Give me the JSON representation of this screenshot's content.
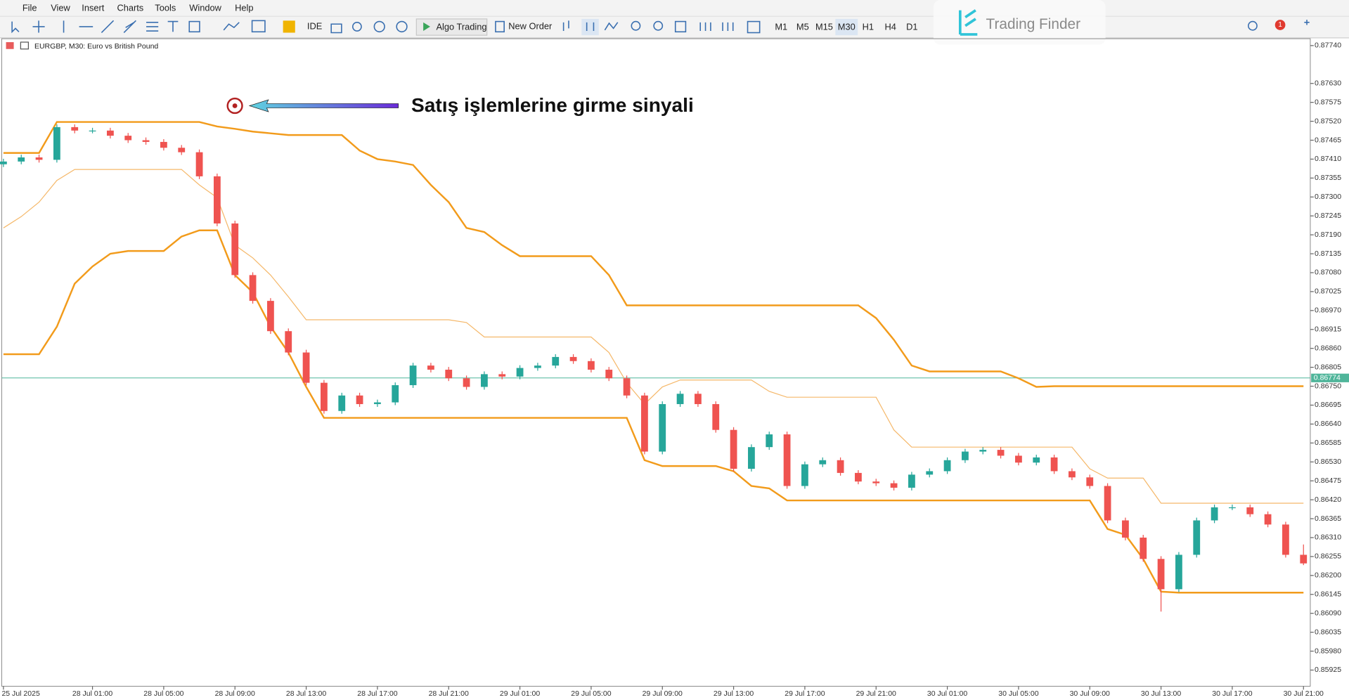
{
  "menu": [
    "File",
    "View",
    "Insert",
    "Charts",
    "Tools",
    "Window",
    "Help"
  ],
  "toolbar": {
    "ide": "IDE",
    "algo": "Algo Trading",
    "order": "New Order",
    "timeframes": [
      "M1",
      "M5",
      "M15",
      "M30",
      "H1",
      "H4",
      "D1"
    ]
  },
  "watermark": "Trading Finder",
  "notification_count": 1,
  "chart_data": {
    "type": "candlestick",
    "title": "EURGBP, M30:  Euro vs British Pound",
    "annotation": "Satış işlemlerine girme sinyali",
    "grid": false,
    "up_color": "#26a69a",
    "down_color": "#ef5350",
    "categories": [
      "25 Jul 2025",
      null,
      null,
      null,
      null,
      "28 Jul 01:00",
      null,
      null,
      null,
      "28 Jul 05:00",
      null,
      null,
      null,
      "28 Jul 09:00",
      null,
      null,
      null,
      "28 Jul 13:00",
      null,
      null,
      null,
      "28 Jul 17:00",
      null,
      null,
      null,
      "28 Jul 21:00",
      null,
      null,
      null,
      "29 Jul 01:00",
      null,
      null,
      null,
      "29 Jul 05:00",
      null,
      null,
      null,
      "29 Jul 09:00",
      null,
      null,
      null,
      "29 Jul 13:00",
      null,
      null,
      null,
      "29 Jul 17:00",
      null,
      null,
      null,
      "29 Jul 21:00",
      null,
      null,
      null,
      "30 Jul 01:00",
      null,
      null,
      null,
      "30 Jul 05:00",
      null,
      null,
      null,
      "30 Jul 09:00",
      null,
      null,
      null,
      "30 Jul 13:00",
      null,
      null,
      null,
      "30 Jul 17:00",
      null,
      null,
      null,
      "30 Jul 21:00"
    ],
    "ohlc": [
      [
        0.87395,
        0.87411,
        0.87387,
        0.87403
      ],
      [
        0.87403,
        0.87423,
        0.87395,
        0.87415
      ],
      [
        0.87415,
        0.87423,
        0.874,
        0.87408
      ],
      [
        0.87408,
        0.87511,
        0.874,
        0.87503
      ],
      [
        0.87503,
        0.87511,
        0.87485,
        0.87493
      ],
      [
        0.87493,
        0.87501,
        0.87485,
        0.87493
      ],
      [
        0.87493,
        0.87501,
        0.8747,
        0.87478
      ],
      [
        0.87478,
        0.87486,
        0.87457,
        0.87465
      ],
      [
        0.87465,
        0.87473,
        0.87452,
        0.8746
      ],
      [
        0.8746,
        0.87468,
        0.87435,
        0.87443
      ],
      [
        0.87443,
        0.87451,
        0.87422,
        0.8743
      ],
      [
        0.8743,
        0.87438,
        0.87352,
        0.8736
      ],
      [
        0.8736,
        0.87368,
        0.87215,
        0.87223
      ],
      [
        0.87223,
        0.87231,
        0.87065,
        0.87073
      ],
      [
        0.87073,
        0.87081,
        0.8699,
        0.86998
      ],
      [
        0.86998,
        0.87006,
        0.86902,
        0.8691
      ],
      [
        0.8691,
        0.86918,
        0.8684,
        0.86848
      ],
      [
        0.86848,
        0.86856,
        0.86752,
        0.8676
      ],
      [
        0.8676,
        0.86768,
        0.8667,
        0.86678
      ],
      [
        0.86678,
        0.86731,
        0.8667,
        0.86723
      ],
      [
        0.86723,
        0.86731,
        0.8669,
        0.86698
      ],
      [
        0.86698,
        0.86711,
        0.8669,
        0.86703
      ],
      [
        0.86703,
        0.86761,
        0.86695,
        0.86753
      ],
      [
        0.86753,
        0.86818,
        0.86745,
        0.8681
      ],
      [
        0.8681,
        0.86818,
        0.8679,
        0.86798
      ],
      [
        0.86798,
        0.86806,
        0.86765,
        0.86773
      ],
      [
        0.86773,
        0.86781,
        0.8674,
        0.86748
      ],
      [
        0.86748,
        0.86793,
        0.8674,
        0.86785
      ],
      [
        0.86785,
        0.86793,
        0.8677,
        0.86778
      ],
      [
        0.86778,
        0.86811,
        0.8677,
        0.86803
      ],
      [
        0.86803,
        0.86818,
        0.86795,
        0.8681
      ],
      [
        0.8681,
        0.86843,
        0.86802,
        0.86835
      ],
      [
        0.86835,
        0.86843,
        0.86815,
        0.86823
      ],
      [
        0.86823,
        0.86831,
        0.8679,
        0.86798
      ],
      [
        0.86798,
        0.86806,
        0.86765,
        0.86773
      ],
      [
        0.86773,
        0.86781,
        0.86715,
        0.86723
      ],
      [
        0.86723,
        0.86731,
        0.86552,
        0.8656
      ],
      [
        0.8656,
        0.86706,
        0.86552,
        0.86698
      ],
      [
        0.86698,
        0.86736,
        0.8669,
        0.86728
      ],
      [
        0.86728,
        0.86736,
        0.8669,
        0.86698
      ],
      [
        0.86698,
        0.86706,
        0.86615,
        0.86623
      ],
      [
        0.86623,
        0.86631,
        0.86502,
        0.8651
      ],
      [
        0.8651,
        0.86581,
        0.86502,
        0.86573
      ],
      [
        0.86573,
        0.86618,
        0.86565,
        0.8661
      ],
      [
        0.8661,
        0.86618,
        0.86452,
        0.8646
      ],
      [
        0.8646,
        0.86531,
        0.86452,
        0.86523
      ],
      [
        0.86523,
        0.86543,
        0.86515,
        0.86535
      ],
      [
        0.86535,
        0.86543,
        0.8649,
        0.86498
      ],
      [
        0.86498,
        0.86506,
        0.86465,
        0.86473
      ],
      [
        0.86473,
        0.86481,
        0.8646,
        0.86468
      ],
      [
        0.86468,
        0.86476,
        0.86447,
        0.86455
      ],
      [
        0.86455,
        0.86501,
        0.86447,
        0.86493
      ],
      [
        0.86493,
        0.86511,
        0.86485,
        0.86503
      ],
      [
        0.86503,
        0.86543,
        0.86495,
        0.86535
      ],
      [
        0.86535,
        0.86568,
        0.86527,
        0.8656
      ],
      [
        0.8656,
        0.86573,
        0.86552,
        0.86565
      ],
      [
        0.86565,
        0.86573,
        0.8654,
        0.86548
      ],
      [
        0.86548,
        0.86556,
        0.8652,
        0.86528
      ],
      [
        0.86528,
        0.86551,
        0.8652,
        0.86543
      ],
      [
        0.86543,
        0.86551,
        0.86495,
        0.86503
      ],
      [
        0.86503,
        0.86511,
        0.86477,
        0.86485
      ],
      [
        0.86485,
        0.86493,
        0.86452,
        0.8646
      ],
      [
        0.8646,
        0.86468,
        0.86352,
        0.8636
      ],
      [
        0.8636,
        0.86368,
        0.86302,
        0.8631
      ],
      [
        0.8631,
        0.86318,
        0.8624,
        0.86248
      ],
      [
        0.86248,
        0.86256,
        0.86095,
        0.8616
      ],
      [
        0.8616,
        0.86268,
        0.86152,
        0.8626
      ],
      [
        0.8626,
        0.86368,
        0.86252,
        0.8636
      ],
      [
        0.8636,
        0.86406,
        0.86352,
        0.86398
      ],
      [
        0.86398,
        0.86406,
        0.8639,
        0.86398
      ],
      [
        0.86398,
        0.86406,
        0.8637,
        0.86378
      ],
      [
        0.86378,
        0.86386,
        0.8634,
        0.86348
      ],
      [
        0.86348,
        0.86356,
        0.86252,
        0.8626
      ],
      [
        0.8626,
        0.8629,
        0.8623,
        0.86235
      ]
    ],
    "bands": [
      {
        "color": "#f29b1b",
        "width": 2,
        "values": [
          0.87428,
          0.87428,
          0.87428,
          0.87518,
          0.87518,
          0.87518,
          0.87518,
          0.87518,
          0.87518,
          0.87518,
          0.87518,
          0.87518,
          0.87505,
          0.87498,
          0.8749,
          0.87485,
          0.8748,
          0.8748,
          0.8748,
          0.8748,
          0.87435,
          0.8741,
          0.87403,
          0.87393,
          0.87335,
          0.87285,
          0.8721,
          0.87198,
          0.8716,
          0.87128,
          0.87128,
          0.87128,
          0.87128,
          0.87128,
          0.87073,
          0.86985,
          0.86985,
          0.86985,
          0.86985,
          0.86985,
          0.86985,
          0.86985,
          0.86985,
          0.86985,
          0.86985,
          0.86985,
          0.86985,
          0.86985,
          0.86985,
          0.86948,
          0.86885,
          0.8681,
          0.86793,
          0.86793,
          0.86793,
          0.86793,
          0.86793,
          0.86773,
          0.86748,
          0.8675,
          0.8675,
          0.8675,
          0.8675,
          0.8675,
          0.8675,
          0.8675,
          0.8675,
          0.8675,
          0.8675,
          0.8675,
          0.8675,
          0.8675,
          0.8675,
          0.8675
        ]
      },
      {
        "color": "#f5b86a",
        "width": 1,
        "values": [
          0.8721,
          0.87243,
          0.87285,
          0.87348,
          0.8738,
          0.8738,
          0.8738,
          0.8738,
          0.8738,
          0.8738,
          0.8738,
          0.87335,
          0.87298,
          0.8716,
          0.87123,
          0.87073,
          0.8701,
          0.86943,
          0.86943,
          0.86943,
          0.86943,
          0.86943,
          0.86943,
          0.86943,
          0.86943,
          0.86943,
          0.86935,
          0.86893,
          0.86893,
          0.86893,
          0.86893,
          0.86893,
          0.86893,
          0.86893,
          0.86848,
          0.8676,
          0.86698,
          0.86748,
          0.86768,
          0.86768,
          0.86768,
          0.86768,
          0.86768,
          0.86735,
          0.86718,
          0.86718,
          0.86718,
          0.86718,
          0.86718,
          0.86718,
          0.86623,
          0.86573,
          0.86573,
          0.86573,
          0.86573,
          0.86573,
          0.86573,
          0.86573,
          0.86573,
          0.86573,
          0.86573,
          0.8651,
          0.86483,
          0.86483,
          0.86483,
          0.8641,
          0.8641,
          0.8641,
          0.8641,
          0.8641,
          0.8641,
          0.8641,
          0.8641,
          0.8641
        ]
      },
      {
        "color": "#f29b1b",
        "width": 2,
        "values": [
          0.86843,
          0.86843,
          0.86843,
          0.86923,
          0.87048,
          0.87098,
          0.87135,
          0.87143,
          0.87143,
          0.87143,
          0.87185,
          0.87203,
          0.87203,
          0.87073,
          0.87023,
          0.86923,
          0.86848,
          0.86748,
          0.86658,
          0.86658,
          0.86658,
          0.86658,
          0.86658,
          0.86658,
          0.86658,
          0.86658,
          0.86658,
          0.86658,
          0.86658,
          0.86658,
          0.86658,
          0.86658,
          0.86658,
          0.86658,
          0.86658,
          0.86658,
          0.86535,
          0.86518,
          0.86518,
          0.86518,
          0.86518,
          0.86503,
          0.8646,
          0.86453,
          0.86418,
          0.86418,
          0.86418,
          0.86418,
          0.86418,
          0.86418,
          0.86418,
          0.86418,
          0.86418,
          0.86418,
          0.86418,
          0.86418,
          0.86418,
          0.86418,
          0.86418,
          0.86418,
          0.86418,
          0.86418,
          0.86335,
          0.86318,
          0.86248,
          0.86153,
          0.8615,
          0.8615,
          0.8615,
          0.8615,
          0.8615,
          0.8615,
          0.8615,
          0.8615
        ]
      }
    ],
    "last_price": 0.86774,
    "last_price_color": "#4fb59a",
    "ylim": [
      0.85878,
      0.8776
    ],
    "yticks": [
      {
        "value": 0.8774,
        "label": "0.87740"
      },
      {
        "value": 0.8763,
        "label": "0.87630"
      },
      0.87575,
      {
        "value": 0.8752,
        "label": "0.87520"
      },
      0.87465,
      {
        "value": 0.8741,
        "label": "0.87410"
      },
      0.87355,
      {
        "value": 0.873,
        "label": "0.87300"
      },
      0.87245,
      {
        "value": 0.8719,
        "label": "0.87190"
      },
      0.87135,
      {
        "value": 0.8708,
        "label": "0.87080"
      },
      0.87025,
      {
        "value": 0.8697,
        "label": "0.86970"
      },
      0.86915,
      {
        "value": 0.8686,
        "label": "0.86860"
      },
      0.86805,
      {
        "value": 0.8675,
        "label": "0.86750"
      },
      0.86695,
      {
        "value": 0.8664,
        "label": "0.86640"
      },
      0.86585,
      {
        "value": 0.8653,
        "label": "0.86530"
      },
      0.86475,
      {
        "value": 0.8642,
        "label": "0.86420"
      },
      0.86365,
      {
        "value": 0.8631,
        "label": "0.86310"
      },
      0.86255,
      {
        "value": 0.862,
        "label": "0.86200"
      },
      0.86145,
      {
        "value": 0.8609,
        "label": "0.86090"
      },
      0.86035,
      {
        "value": 0.8598,
        "label": "0.85980"
      },
      0.85925
    ]
  }
}
